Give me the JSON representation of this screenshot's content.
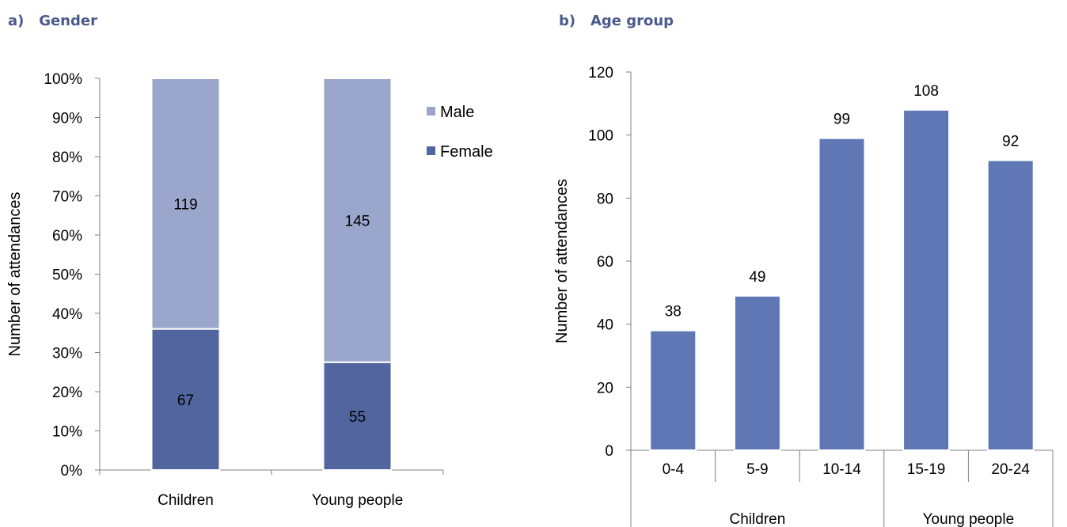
{
  "panel_a": {
    "tag": "a)",
    "title": "Gender"
  },
  "panel_b": {
    "tag": "b)",
    "title": "Age group"
  },
  "colors": {
    "male": "#9aa6cb",
    "female": "#52659e",
    "age_bar": "#5f77b4",
    "axis": "#808080"
  },
  "chart_data": [
    {
      "type": "bar",
      "stacked": "percent",
      "title": "Gender",
      "categories": [
        "Children",
        "Young people"
      ],
      "series": [
        {
          "name": "Female",
          "values": [
            67,
            55
          ]
        },
        {
          "name": "Male",
          "values": [
            119,
            145
          ]
        }
      ],
      "ylabel": "Number of attendances",
      "yticks": [
        "0%",
        "10%",
        "20%",
        "30%",
        "40%",
        "50%",
        "60%",
        "70%",
        "80%",
        "90%",
        "100%"
      ],
      "ylim": [
        0,
        100
      ],
      "legend": [
        "Male",
        "Female"
      ],
      "legend_position": "right"
    },
    {
      "type": "bar",
      "title": "Age group",
      "categories": [
        "0-4",
        "5-9",
        "10-14",
        "15-19",
        "20-24"
      ],
      "groups": [
        {
          "label": "Children",
          "span": [
            0,
            2
          ]
        },
        {
          "label": "Young people",
          "span": [
            3,
            4
          ]
        }
      ],
      "values": [
        38,
        49,
        99,
        108,
        92
      ],
      "ylabel": "Number of attendances",
      "yticks": [
        "0",
        "20",
        "40",
        "60",
        "80",
        "100",
        "120"
      ],
      "ylim": [
        0,
        120
      ]
    }
  ]
}
